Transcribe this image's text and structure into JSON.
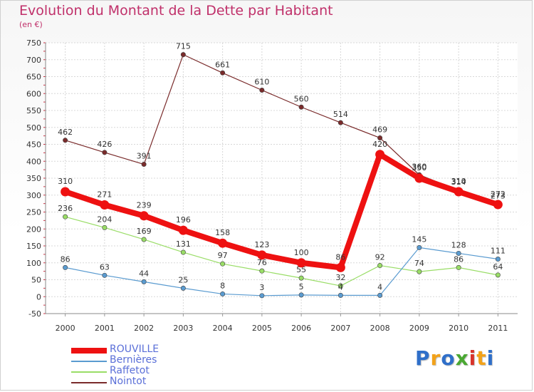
{
  "header": {
    "title": "Evolution du Montant de la Dette par Habitant",
    "unit": "(en €)"
  },
  "logo": {
    "text": "Proxiti",
    "colors": [
      "#2f6fc9",
      "#f2a21a",
      "#2f6fc9",
      "#4aa832",
      "#d8332b",
      "#f2a21a",
      "#2f6fc9"
    ]
  },
  "chart_data": {
    "type": "line",
    "x": [
      "2000",
      "2001",
      "2002",
      "2003",
      "2004",
      "2005",
      "2006",
      "2007",
      "2008",
      "2009",
      "2010",
      "2011"
    ],
    "ylim": [
      -50,
      750
    ],
    "yticks": [
      -50,
      0,
      50,
      100,
      150,
      200,
      250,
      300,
      350,
      400,
      450,
      500,
      550,
      600,
      650,
      700,
      750
    ],
    "grid": true,
    "legend_position": "bottom-left",
    "series": [
      {
        "name": "ROUVILLE",
        "color": "#ee1111",
        "values": [
          310,
          271,
          239,
          196,
          158,
          123,
          100,
          86,
          420,
          350,
          310,
          272
        ],
        "labels": [
          "310",
          "271",
          "239",
          "196",
          "158",
          "123",
          "100",
          "86",
          "420",
          "350",
          "310",
          "272"
        ]
      },
      {
        "name": "Bernières",
        "color": "#5a9bd0",
        "values": [
          86,
          63,
          44,
          25,
          8,
          3,
          5,
          4,
          4,
          145,
          128,
          111
        ],
        "labels": [
          "86",
          "63",
          "44",
          "25",
          "8",
          "3",
          "5",
          "4",
          "4",
          "145",
          "128",
          "111"
        ]
      },
      {
        "name": "Raffetot",
        "color": "#99dd66",
        "values": [
          236,
          204,
          169,
          131,
          97,
          76,
          55,
          32,
          92,
          74,
          86,
          64
        ],
        "labels": [
          "236",
          "204",
          "169",
          "131",
          "97",
          "76",
          "55",
          "32",
          "92",
          "74",
          "86",
          "64"
        ]
      },
      {
        "name": "Nointot",
        "color": "#7a2b2b",
        "values": [
          462,
          426,
          391,
          715,
          661,
          610,
          560,
          514,
          469,
          360,
          314,
          273
        ],
        "labels": [
          "462",
          "426",
          "391",
          "715",
          "661",
          "610",
          "560",
          "514",
          "469",
          "360",
          "314",
          "273"
        ]
      }
    ]
  }
}
